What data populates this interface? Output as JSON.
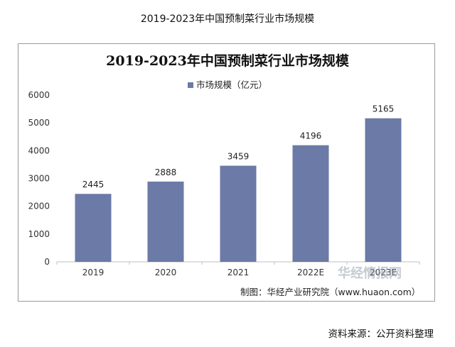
{
  "page": {
    "caption": "2019-2023年中国预制菜行业市场规模",
    "maker_note": "制图：华经产业研究院（www.huaon.com）",
    "source_note": "资料来源：公开资料整理",
    "watermark": "华经情报网"
  },
  "chart_data": {
    "type": "bar",
    "title": "2019-2023年中国预制菜行业市场规模",
    "categories": [
      "2019",
      "2020",
      "2021",
      "2022E",
      "2023E"
    ],
    "series": [
      {
        "name": "市场规模（亿元）",
        "values": [
          2445,
          2888,
          3459,
          4196,
          5165
        ],
        "color": "#6b7aa6"
      }
    ],
    "data_labels": [
      "2445",
      "2888",
      "3459",
      "4196",
      "5165"
    ],
    "ylim": [
      0,
      6000
    ],
    "yticks": [
      "0",
      "1000",
      "2000",
      "3000",
      "4000",
      "5000",
      "6000"
    ],
    "xlabel": "",
    "ylabel": "",
    "grid": false,
    "legend_position": "top-center"
  }
}
